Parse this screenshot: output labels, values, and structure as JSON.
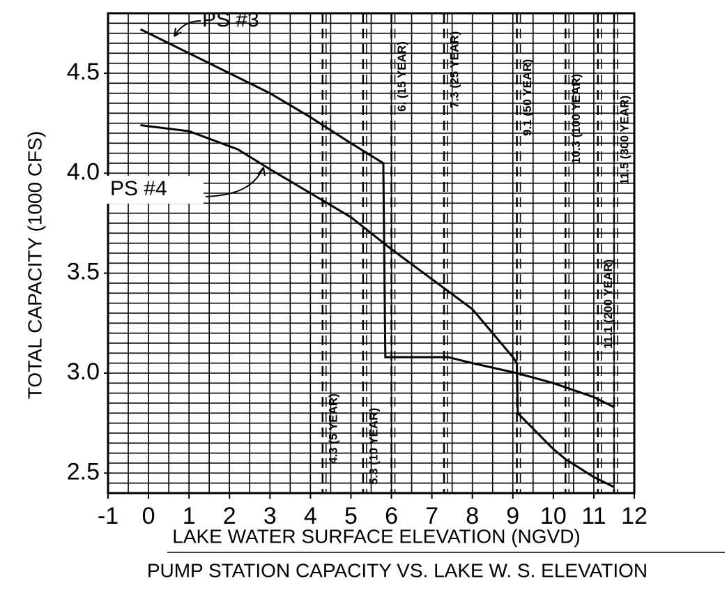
{
  "chart_data": {
    "type": "line",
    "title": "PUMP STATION CAPACITY VS. LAKE W. S. ELEVATION",
    "x_label": "LAKE WATER SURFACE ELEVATION (NGVD)",
    "y_label": "TOTAL CAPACITY (1000 CFS)",
    "xlim": [
      -1,
      12
    ],
    "ylim": [
      2.4,
      4.8
    ],
    "xticks": [
      -1,
      0,
      1,
      2,
      3,
      4,
      5,
      6,
      7,
      8,
      9,
      10,
      11,
      12
    ],
    "yticks": [
      2.5,
      {
        "value": 3,
        "label": "3.0"
      },
      3.5,
      {
        "value": 4,
        "label": "4.0"
      },
      4.5
    ],
    "grid": true,
    "xgrid_step": 0.5,
    "ygrid_step": 0.05,
    "series": [
      {
        "name": "PS #3",
        "color": "#000000",
        "x": [
          -0.2,
          1,
          2,
          3,
          4,
          5,
          5.8,
          5.85,
          7.4,
          8,
          9.1,
          10,
          11,
          11.5
        ],
        "values": [
          4.72,
          4.6,
          4.5,
          4.4,
          4.28,
          4.15,
          4.05,
          3.08,
          3.08,
          3.05,
          3.0,
          2.95,
          2.88,
          2.83
        ]
      },
      {
        "name": "PS #4",
        "color": "#000000",
        "x": [
          -0.2,
          1,
          2.2,
          3,
          4,
          5,
          6,
          7,
          8,
          9,
          9.1,
          9.12,
          10,
          10.3,
          11,
          11.5
        ],
        "values": [
          4.24,
          4.21,
          4.12,
          4.02,
          3.9,
          3.78,
          3.62,
          3.47,
          3.32,
          3.08,
          3.05,
          2.8,
          2.62,
          2.57,
          2.48,
          2.43
        ]
      }
    ],
    "reference_lines": [
      {
        "x": 4.3,
        "label": "4.3 (5 YEAR)"
      },
      {
        "x": 5.3,
        "label": "5.3 (10 YEAR)"
      },
      {
        "x": 6.0,
        "label": "6. (15 YEAR)"
      },
      {
        "x": 7.3,
        "label": "7.3 (25 YEAR)"
      },
      {
        "x": 9.1,
        "label": "9.1 (50 YEAR)"
      },
      {
        "x": 10.3,
        "label": "10.3 (100 YEAR)"
      },
      {
        "x": 11.1,
        "label": "11.1 (200 YEAR)"
      },
      {
        "x": 11.5,
        "label": "11.5 (300 YEAR)"
      }
    ]
  }
}
